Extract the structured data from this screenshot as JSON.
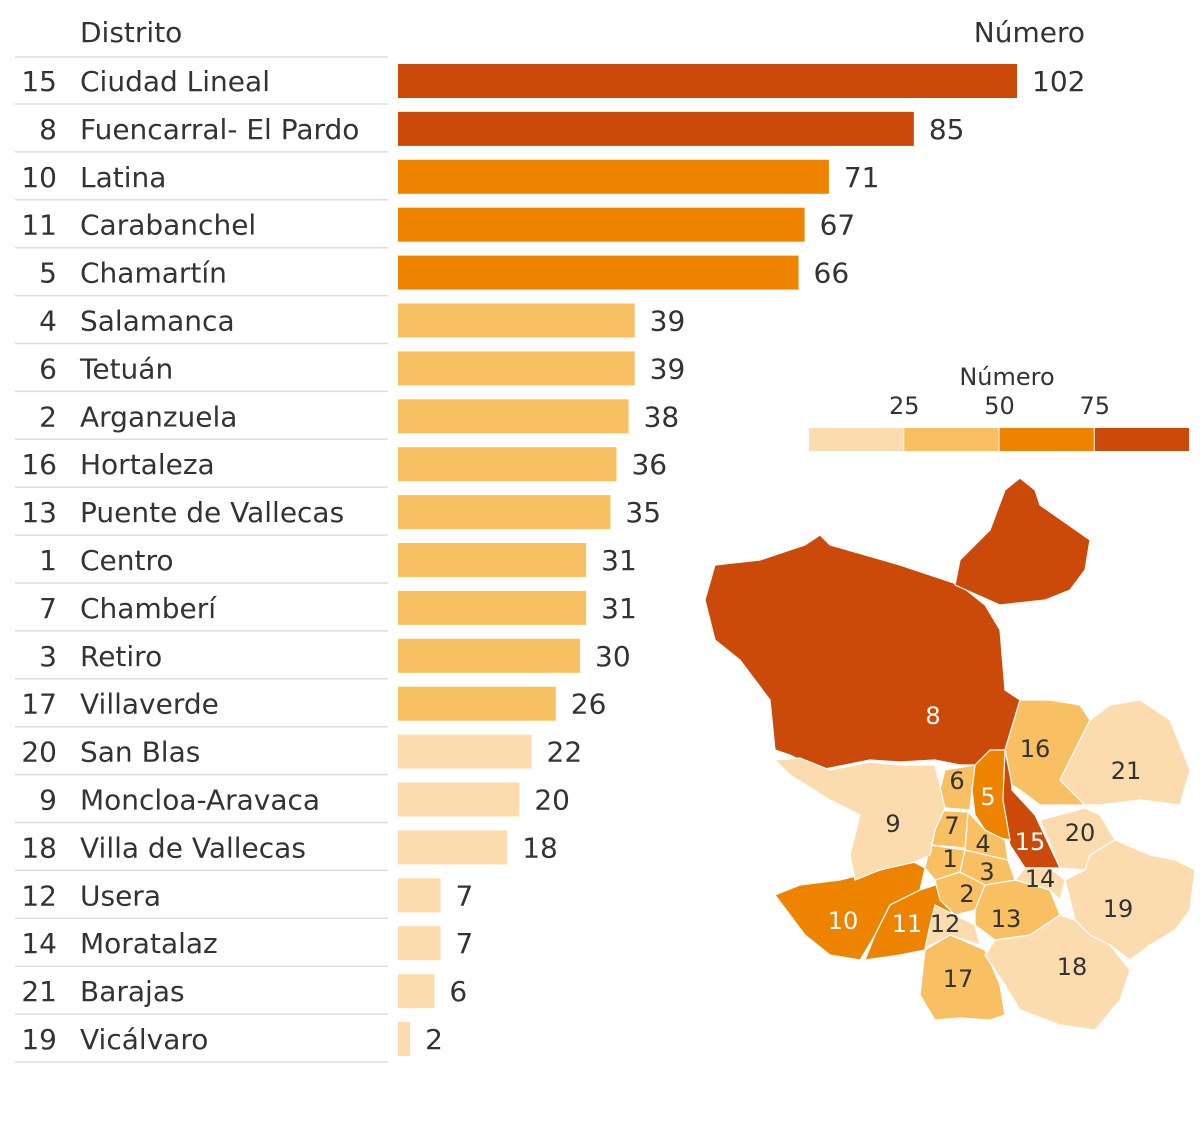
{
  "chart_data": {
    "type": "bar",
    "header_name": "Distrito",
    "header_value": "Número",
    "ids": [
      15,
      8,
      10,
      11,
      5,
      4,
      6,
      2,
      16,
      13,
      1,
      7,
      3,
      17,
      20,
      9,
      18,
      12,
      14,
      21,
      19
    ],
    "categories": [
      "Ciudad Lineal",
      "Fuencarral- El Pardo",
      "Latina",
      "Carabanchel",
      "Chamartín",
      "Salamanca",
      "Tetuán",
      "Arganzuela",
      "Hortaleza",
      "Puente de Vallecas",
      "Centro",
      "Chamberí",
      "Retiro",
      "Villaverde",
      "San Blas",
      "Moncloa-Aravaca",
      "Villa de Vallecas",
      "Usera",
      "Moratalaz",
      "Barajas",
      "Vicálvaro"
    ],
    "values": [
      102,
      85,
      71,
      67,
      66,
      39,
      39,
      38,
      36,
      35,
      31,
      31,
      30,
      26,
      22,
      20,
      18,
      7,
      7,
      6,
      2
    ],
    "xlim": [
      0,
      102
    ],
    "legend": {
      "title": "Número",
      "breaks": [
        25,
        50,
        75
      ],
      "colors": [
        "#fcdcae",
        "#f8bf63",
        "#ee8300",
        "#cb4a0a"
      ]
    }
  }
}
